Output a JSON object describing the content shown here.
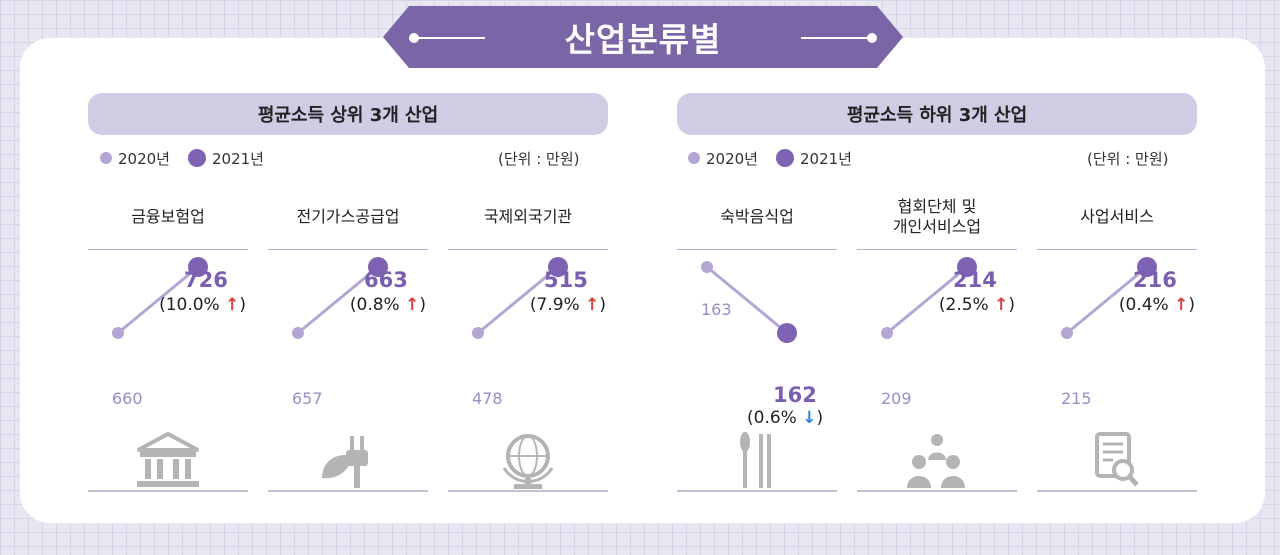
{
  "title": "산업분류별",
  "panels": [
    {
      "title": "평균소득 상위 3개 산업",
      "legend_2020": "2020년",
      "legend_2021": "2021년",
      "unit": "(단위 : 만원)"
    },
    {
      "title": "평균소득 하위 3개 산업",
      "legend_2020": "2020년",
      "legend_2021": "2021년",
      "unit": "(단위 : 만원)"
    }
  ],
  "industries": [
    {
      "name": "금융보험업",
      "v2020": "660",
      "v2021": "726",
      "change": "(10.0%",
      "arrow": "🡅",
      "dir": "up",
      "icon": "bank-icon"
    },
    {
      "name": "전기가스공급업",
      "v2020": "657",
      "v2021": "663",
      "change": "(0.8%",
      "arrow": "🡅",
      "dir": "up",
      "icon": "plug-leaf-icon"
    },
    {
      "name": "국제외국기관",
      "v2020": "478",
      "v2021": "515",
      "change": "(7.9%",
      "arrow": "🡅",
      "dir": "up",
      "icon": "globe-icon"
    },
    {
      "name": "숙박음식업",
      "v2020": "163",
      "v2021": "162",
      "change": "(0.6%",
      "arrow": "🡇",
      "dir": "down",
      "icon": "spoon-chopsticks-icon"
    },
    {
      "name": "협회단체 및\n개인서비스업",
      "v2020": "209",
      "v2021": "214",
      "change": "(2.5%",
      "arrow": "🡅",
      "dir": "up",
      "icon": "people-icon"
    },
    {
      "name": "사업서비스",
      "v2020": "215",
      "v2021": "216",
      "change": "(0.4%",
      "arrow": "🡅",
      "dir": "up",
      "icon": "document-search-icon"
    }
  ],
  "colors": {
    "v2020": "#b3a6d4",
    "v2021": "#7e62b4",
    "up": "#d9413b",
    "down": "#2e86d1"
  },
  "chart_data": {
    "type": "line",
    "title": "산업분류별",
    "series": [
      {
        "name": "2020년"
      },
      {
        "name": "2021년"
      }
    ],
    "categories": [
      "금융보험업",
      "전기가스공급업",
      "국제외국기관",
      "숙박음식업",
      "협회단체 및 개인서비스업",
      "사업서비스"
    ],
    "values_2020": [
      660,
      657,
      478,
      163,
      209,
      215
    ],
    "values_2021": [
      726,
      663,
      515,
      162,
      214,
      216
    ],
    "change_percent": [
      10.0,
      0.8,
      7.9,
      -0.6,
      2.5,
      0.4
    ],
    "unit": "만원"
  }
}
